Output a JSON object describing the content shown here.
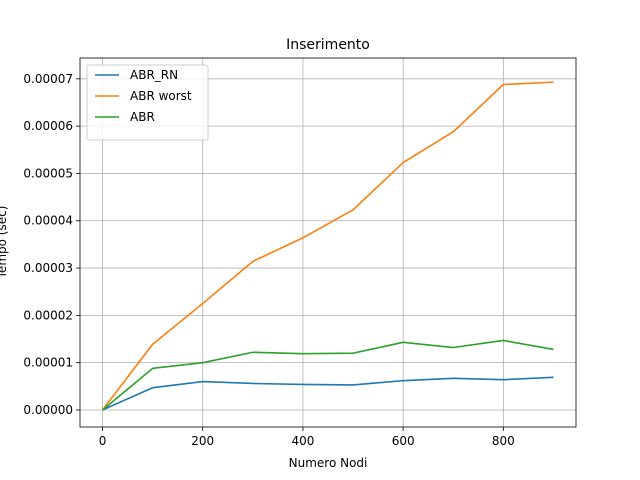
{
  "chart_data": {
    "type": "line",
    "title": "Inserimento",
    "xlabel": "Numero Nodi",
    "ylabel": "Tempo (sec)",
    "x": [
      0,
      100,
      200,
      300,
      400,
      500,
      600,
      700,
      800,
      900
    ],
    "xlim": [
      -45,
      945
    ],
    "ylim": [
      -3.6e-06,
      7.44e-05
    ],
    "xticks": [
      0,
      200,
      400,
      600,
      800
    ],
    "xtick_labels": [
      "0",
      "200",
      "400",
      "600",
      "800"
    ],
    "yticks": [
      0,
      1e-05,
      2e-05,
      3e-05,
      4e-05,
      5e-05,
      6e-05,
      7e-05
    ],
    "ytick_labels": [
      "0.00000",
      "0.00001",
      "0.00002",
      "0.00003",
      "0.00004",
      "0.00005",
      "0.00006",
      "0.00007"
    ],
    "grid": true,
    "legend_position": "top-left",
    "series": [
      {
        "name": "ABR_RN",
        "color": "#1f77b4",
        "values": [
          0,
          4.7e-06,
          6e-06,
          5.6e-06,
          5.4e-06,
          5.3e-06,
          6.2e-06,
          6.7e-06,
          6.4e-06,
          6.9e-06
        ]
      },
      {
        "name": "ABR worst",
        "color": "#ff7f0e",
        "values": [
          0,
          1.39e-05,
          2.25e-05,
          3.14e-05,
          3.64e-05,
          4.23e-05,
          5.23e-05,
          5.88e-05,
          6.88e-05,
          6.93e-05
        ]
      },
      {
        "name": "ABR",
        "color": "#2ca02c",
        "values": [
          0,
          8.8e-06,
          1e-05,
          1.22e-05,
          1.19e-05,
          1.2e-05,
          1.43e-05,
          1.32e-05,
          1.47e-05,
          1.28e-05
        ]
      }
    ]
  }
}
